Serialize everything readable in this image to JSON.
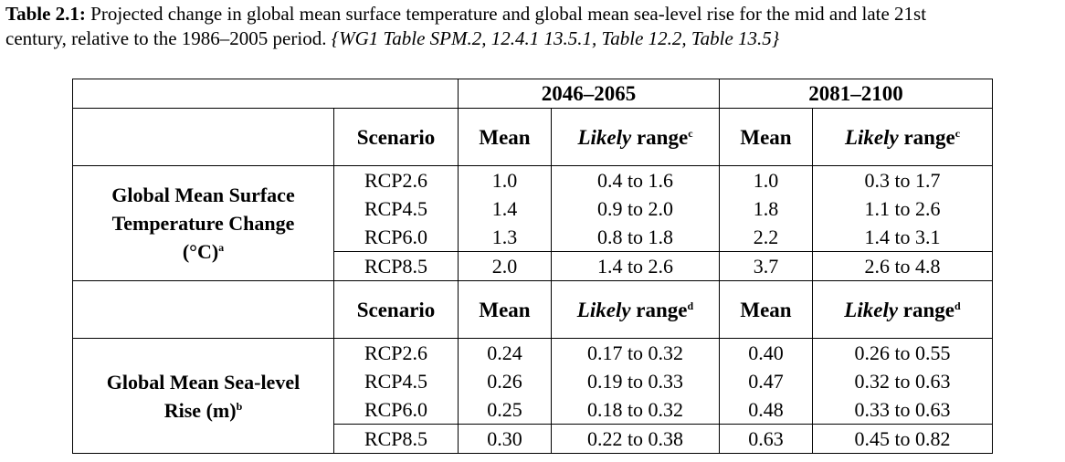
{
  "caption": {
    "label": "Table 2.1:",
    "line1_text": " Projected change in global mean surface temperature and global mean sea-level rise for the mid and late 21st",
    "line2_text": "century, relative to the 1986–2005 period. ",
    "references": "{WG1 Table SPM.2, 12.4.1 13.5.1, Table 12.2, Table 13.5}"
  },
  "table": {
    "periods": [
      "2046–2065",
      "2081–2100"
    ],
    "header": {
      "scenario": "Scenario",
      "mean": "Mean",
      "likely": "Likely",
      "range": " range"
    },
    "sections": [
      {
        "label_lines": [
          "Global Mean Surface",
          "Temperature Change",
          "(°C)"
        ],
        "label_footnote": "a",
        "range_footnote": "c",
        "rows": [
          {
            "scenario": "RCP2.6",
            "mean1": "1.0",
            "range1": "0.4 to 1.6",
            "mean2": "1.0",
            "range2": "0.3 to 1.7"
          },
          {
            "scenario": "RCP4.5",
            "mean1": "1.4",
            "range1": "0.9 to 2.0",
            "mean2": "1.8",
            "range2": "1.1 to 2.6"
          },
          {
            "scenario": "RCP6.0",
            "mean1": "1.3",
            "range1": "0.8 to 1.8",
            "mean2": "2.2",
            "range2": "1.4 to 3.1"
          },
          {
            "scenario": "RCP8.5",
            "mean1": "2.0",
            "range1": "1.4 to 2.6",
            "mean2": "3.7",
            "range2": "2.6 to 4.8"
          }
        ]
      },
      {
        "label_lines": [
          "Global Mean Sea-level",
          "Rise (m)"
        ],
        "label_footnote": "b",
        "range_footnote": "d",
        "rows": [
          {
            "scenario": "RCP2.6",
            "mean1": "0.24",
            "range1": "0.17 to 0.32",
            "mean2": "0.40",
            "range2": "0.26 to 0.55"
          },
          {
            "scenario": "RCP4.5",
            "mean1": "0.26",
            "range1": "0.19 to 0.33",
            "mean2": "0.47",
            "range2": "0.32 to 0.63"
          },
          {
            "scenario": "RCP6.0",
            "mean1": "0.25",
            "range1": "0.18 to 0.32",
            "mean2": "0.48",
            "range2": "0.33 to 0.63"
          },
          {
            "scenario": "RCP8.5",
            "mean1": "0.30",
            "range1": "0.22 to 0.38",
            "mean2": "0.63",
            "range2": "0.45 to 0.82"
          }
        ]
      }
    ]
  }
}
